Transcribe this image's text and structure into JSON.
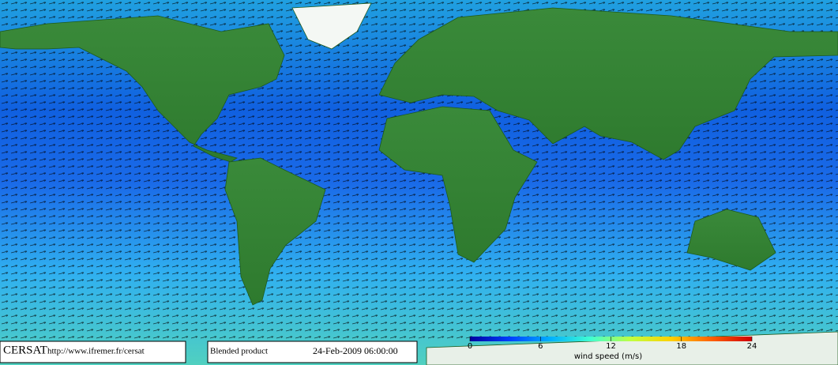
{
  "credit": {
    "brand": "CERSAT",
    "url": "http://www.ifremer.fr/cersat"
  },
  "product": "Blended product",
  "timestamp": "24-Feb-2009 06:00:00",
  "colorbar": {
    "label": "wind speed (m/s)",
    "lim": [
      0,
      24
    ],
    "ticks": [
      0,
      6,
      12,
      18,
      24
    ],
    "colors": [
      "#0000a0",
      "#0040ff",
      "#00b0ff",
      "#40ffd0",
      "#c0ff40",
      "#ffd000",
      "#ff6000",
      "#d00000"
    ]
  }
}
